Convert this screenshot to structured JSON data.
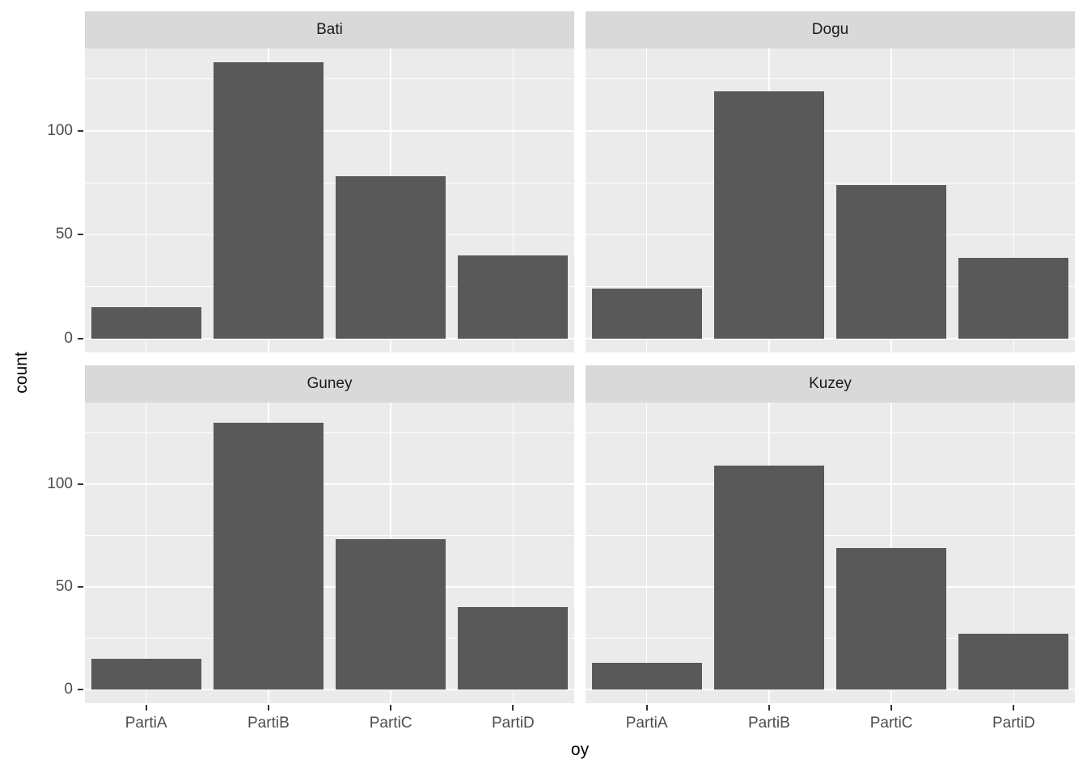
{
  "chart_data": {
    "type": "bar",
    "faceted": true,
    "facet_titles": [
      "Bati",
      "Dogu",
      "Guney",
      "Kuzey"
    ],
    "categories": [
      "PartiA",
      "PartiB",
      "PartiC",
      "PartiD"
    ],
    "series": [
      {
        "name": "Bati",
        "values": [
          15,
          133,
          78,
          40
        ]
      },
      {
        "name": "Dogu",
        "values": [
          24,
          119,
          74,
          39
        ]
      },
      {
        "name": "Guney",
        "values": [
          15,
          130,
          73,
          40
        ]
      },
      {
        "name": "Kuzey",
        "values": [
          13,
          109,
          69,
          27
        ]
      }
    ],
    "title": "",
    "xlabel": "oy",
    "ylabel": "count",
    "y_ticks": [
      0,
      50,
      100
    ],
    "y_minor_ticks": [
      25,
      75,
      125
    ],
    "ylim": [
      -6.65,
      139.65
    ],
    "grid": true,
    "legend": false,
    "colors": {
      "bar_fill": "#595959",
      "panel_bg": "#EBEBEB",
      "strip_bg": "#D9D9D9",
      "grid": "#FFFFFF",
      "tick_text": "#4D4D4D",
      "axis_title_text": "#000000"
    }
  }
}
